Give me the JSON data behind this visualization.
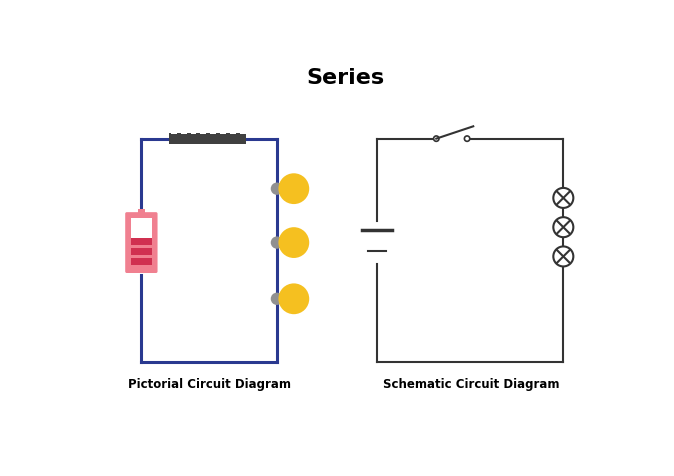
{
  "title": "Series",
  "title_fontsize": 16,
  "title_fontweight": "bold",
  "bg_color": "#ffffff",
  "left_label": "Pictorial Circuit Diagram",
  "right_label": "Schematic Circuit Diagram",
  "circuit_line_color": "#2a3990",
  "schematic_line_color": "#333333",
  "battery_pink": "#f08090",
  "battery_stripe": "#d03050",
  "bulb_yellow": "#f5c020",
  "bulb_cap_gray": "#909090",
  "switch_dark": "#404040",
  "switch_white": "#ffffff"
}
